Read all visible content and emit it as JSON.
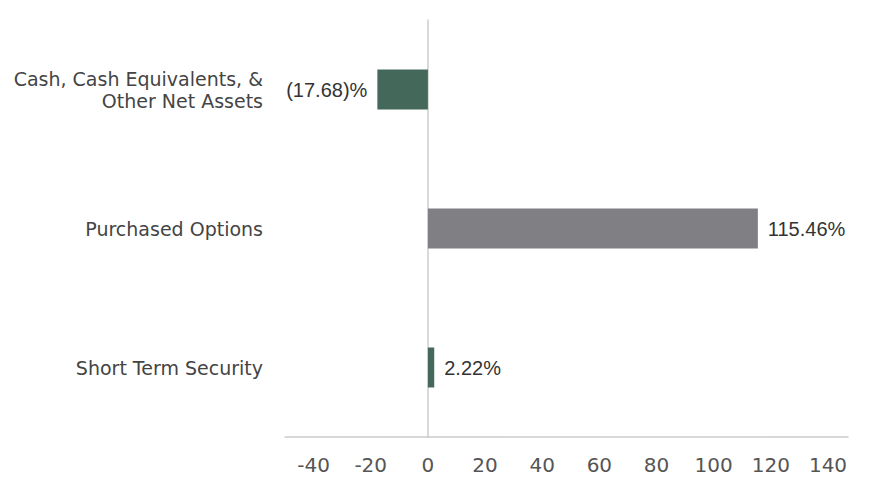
{
  "chart_data": {
    "type": "bar",
    "orientation": "horizontal",
    "categories": [
      "Cash, Cash Equivalents, &\nOther Net Assets",
      "Purchased Options",
      "Short Term Security"
    ],
    "values": [
      -17.68,
      115.46,
      2.22
    ],
    "value_labels": [
      "(17.68)%",
      "115.46%",
      "2.22%"
    ],
    "data_labels": true,
    "colors": [
      "#44695a",
      "#808084",
      "#44695a"
    ],
    "xlim": [
      -50,
      147
    ],
    "xticks": [
      -40,
      -20,
      0,
      20,
      40,
      60,
      80,
      100,
      120,
      140
    ],
    "grid": false
  }
}
